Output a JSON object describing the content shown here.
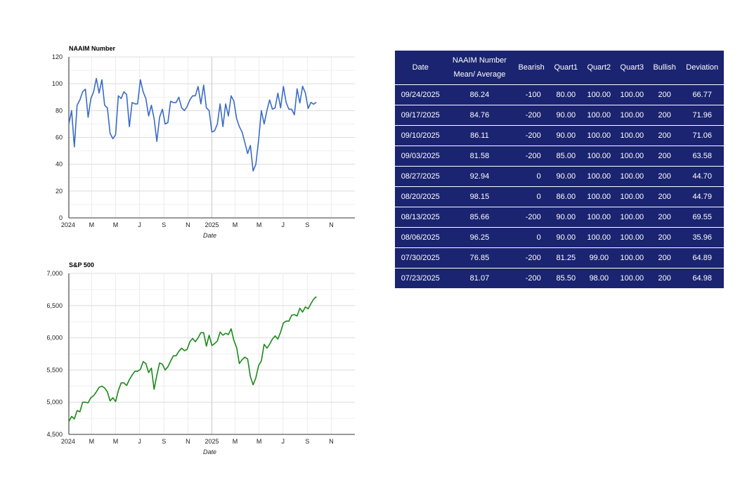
{
  "colors": {
    "naaim_line": "#3a6bc7",
    "sp_line": "#1a8a1a",
    "table_bg": "#1b2470",
    "table_text": "#ffffff",
    "grid": "#e2e2e2"
  },
  "chart_data": [
    {
      "type": "line",
      "title": "NAAIM Number",
      "xlabel": "Date",
      "ylabel": "",
      "ylim": [
        0,
        120
      ],
      "yticks": [
        0,
        20,
        40,
        60,
        80,
        100,
        120
      ],
      "ytick_labels": [
        "0",
        "20",
        "40",
        "60",
        "80",
        "100",
        "120"
      ],
      "xlim": [
        "2024-01-03",
        "2025-12-31"
      ],
      "xtick_labels": [
        "2024",
        "M",
        "M",
        "J",
        "S",
        "N",
        "2025",
        "M",
        "M",
        "J",
        "S",
        "N"
      ],
      "xtick_dates": [
        "2024-01-01",
        "2024-03-01",
        "2024-05-01",
        "2024-07-01",
        "2024-09-01",
        "2024-11-01",
        "2025-01-01",
        "2025-03-01",
        "2025-05-01",
        "2025-07-01",
        "2025-09-01",
        "2025-11-01"
      ],
      "grid": true,
      "series": [
        {
          "x": [
            "2024-01-03",
            "2024-01-10",
            "2024-01-17",
            "2024-01-24",
            "2024-01-31",
            "2024-02-07",
            "2024-02-14",
            "2024-02-21",
            "2024-02-28",
            "2024-03-06",
            "2024-03-13",
            "2024-03-20",
            "2024-03-27",
            "2024-04-03",
            "2024-04-10",
            "2024-04-17",
            "2024-04-24",
            "2024-05-01",
            "2024-05-08",
            "2024-05-15",
            "2024-05-22",
            "2024-05-29",
            "2024-06-05",
            "2024-06-12",
            "2024-06-19",
            "2024-06-26",
            "2024-07-03",
            "2024-07-10",
            "2024-07-17",
            "2024-07-24",
            "2024-07-31",
            "2024-08-07",
            "2024-08-14",
            "2024-08-21",
            "2024-08-28",
            "2024-09-04",
            "2024-09-11",
            "2024-09-18",
            "2024-09-25",
            "2024-10-02",
            "2024-10-09",
            "2024-10-16",
            "2024-10-23",
            "2024-10-30",
            "2024-11-06",
            "2024-11-13",
            "2024-11-20",
            "2024-11-27",
            "2024-12-04",
            "2024-12-11",
            "2024-12-18",
            "2024-12-25",
            "2025-01-01",
            "2025-01-08",
            "2025-01-15",
            "2025-01-22",
            "2025-01-29",
            "2025-02-05",
            "2025-02-12",
            "2025-02-19",
            "2025-02-26",
            "2025-03-05",
            "2025-03-12",
            "2025-03-19",
            "2025-03-26",
            "2025-04-02",
            "2025-04-09",
            "2025-04-16",
            "2025-04-23",
            "2025-04-30",
            "2025-05-07",
            "2025-05-14",
            "2025-05-21",
            "2025-05-28",
            "2025-06-04",
            "2025-06-11",
            "2025-06-18",
            "2025-06-25",
            "2025-07-02",
            "2025-07-09",
            "2025-07-16",
            "2025-07-23",
            "2025-07-30",
            "2025-08-06",
            "2025-08-13",
            "2025-08-20",
            "2025-08-27",
            "2025-09-03",
            "2025-09-10",
            "2025-09-17",
            "2025-09-24"
          ],
          "values": [
            70,
            80,
            53,
            84,
            88,
            94,
            96,
            75,
            89,
            94,
            104,
            93,
            103,
            84,
            82,
            63,
            59,
            62,
            91,
            89,
            94,
            92,
            68,
            86,
            85,
            85,
            103,
            94,
            89,
            76,
            84,
            74,
            57,
            75,
            81,
            70,
            71,
            87,
            86,
            86,
            90,
            82,
            80,
            83,
            88,
            91,
            91,
            98,
            85,
            99,
            82,
            80,
            64,
            65,
            70,
            85,
            68,
            85,
            76,
            91,
            87,
            74,
            68,
            64,
            56,
            48,
            54,
            35,
            40,
            58,
            80,
            70,
            80,
            88,
            81,
            82,
            93,
            82,
            98,
            86,
            81,
            81,
            76.85,
            96.25,
            85.66,
            98.15,
            92.94,
            81.58,
            86.11,
            84.76,
            86.24
          ]
        }
      ]
    },
    {
      "type": "line",
      "title": "S&P 500",
      "xlabel": "Date",
      "ylabel": "",
      "ylim": [
        4500,
        7000
      ],
      "yticks": [
        4500,
        5000,
        5500,
        6000,
        6500,
        7000
      ],
      "ytick_labels": [
        "4,500",
        "5,000",
        "5,500",
        "6,000",
        "6,500",
        "7,000"
      ],
      "xlim": [
        "2024-01-03",
        "2025-12-31"
      ],
      "xtick_labels": [
        "2024",
        "M",
        "M",
        "J",
        "S",
        "N",
        "2025",
        "M",
        "M",
        "J",
        "S",
        "N"
      ],
      "xtick_dates": [
        "2024-01-01",
        "2024-03-01",
        "2024-05-01",
        "2024-07-01",
        "2024-09-01",
        "2024-11-01",
        "2025-01-01",
        "2025-03-01",
        "2025-05-01",
        "2025-07-01",
        "2025-09-01",
        "2025-11-01"
      ],
      "grid": true,
      "series": [
        {
          "x": [
            "2024-01-03",
            "2024-01-10",
            "2024-01-17",
            "2024-01-24",
            "2024-01-31",
            "2024-02-07",
            "2024-02-14",
            "2024-02-21",
            "2024-02-28",
            "2024-03-06",
            "2024-03-13",
            "2024-03-20",
            "2024-03-27",
            "2024-04-03",
            "2024-04-10",
            "2024-04-17",
            "2024-04-24",
            "2024-05-01",
            "2024-05-08",
            "2024-05-15",
            "2024-05-22",
            "2024-05-29",
            "2024-06-05",
            "2024-06-12",
            "2024-06-19",
            "2024-06-26",
            "2024-07-03",
            "2024-07-10",
            "2024-07-17",
            "2024-07-24",
            "2024-07-31",
            "2024-08-07",
            "2024-08-14",
            "2024-08-21",
            "2024-08-28",
            "2024-09-04",
            "2024-09-11",
            "2024-09-18",
            "2024-09-25",
            "2024-10-02",
            "2024-10-09",
            "2024-10-16",
            "2024-10-23",
            "2024-10-30",
            "2024-11-06",
            "2024-11-13",
            "2024-11-20",
            "2024-11-27",
            "2024-12-04",
            "2024-12-11",
            "2024-12-18",
            "2024-12-25",
            "2025-01-01",
            "2025-01-08",
            "2025-01-15",
            "2025-01-22",
            "2025-01-29",
            "2025-02-05",
            "2025-02-12",
            "2025-02-19",
            "2025-02-26",
            "2025-03-05",
            "2025-03-12",
            "2025-03-19",
            "2025-03-26",
            "2025-04-02",
            "2025-04-09",
            "2025-04-16",
            "2025-04-23",
            "2025-04-30",
            "2025-05-07",
            "2025-05-14",
            "2025-05-21",
            "2025-05-28",
            "2025-06-04",
            "2025-06-11",
            "2025-06-18",
            "2025-06-25",
            "2025-07-02",
            "2025-07-09",
            "2025-07-16",
            "2025-07-23",
            "2025-07-30",
            "2025-08-06",
            "2025-08-13",
            "2025-08-20",
            "2025-08-27",
            "2025-09-03",
            "2025-09-10",
            "2025-09-17",
            "2025-09-24"
          ],
          "values": [
            4700,
            4780,
            4740,
            4870,
            4850,
            5000,
            5000,
            4990,
            5070,
            5100,
            5160,
            5230,
            5250,
            5220,
            5160,
            5020,
            5070,
            5010,
            5180,
            5300,
            5300,
            5260,
            5350,
            5420,
            5480,
            5480,
            5510,
            5630,
            5600,
            5460,
            5530,
            5200,
            5420,
            5610,
            5590,
            5500,
            5550,
            5640,
            5720,
            5720,
            5790,
            5840,
            5800,
            5820,
            5940,
            5990,
            5940,
            6000,
            6080,
            6080,
            5870,
            6040,
            5880,
            5910,
            5950,
            6090,
            6040,
            6070,
            6050,
            6140,
            5960,
            5850,
            5600,
            5660,
            5700,
            5670,
            5400,
            5270,
            5380,
            5570,
            5640,
            5900,
            5840,
            5900,
            5980,
            6030,
            5980,
            6090,
            6230,
            6260,
            6260,
            6350,
            6360,
            6340,
            6460,
            6400,
            6480,
            6450,
            6530,
            6600,
            6640
          ]
        }
      ]
    }
  ],
  "table": {
    "headers": [
      "Date",
      "NAAIM Number Mean/ Average",
      "Bearish",
      "Quart1",
      "Quart2",
      "Quart3",
      "Bullish",
      "Deviation"
    ],
    "rows": [
      [
        "09/24/2025",
        "86.24",
        "-100",
        "80.00",
        "100.00",
        "100.00",
        "200",
        "66.77"
      ],
      [
        "09/17/2025",
        "84.76",
        "-200",
        "90.00",
        "100.00",
        "100.00",
        "200",
        "71.96"
      ],
      [
        "09/10/2025",
        "86.11",
        "-200",
        "90.00",
        "100.00",
        "100.00",
        "200",
        "71.06"
      ],
      [
        "09/03/2025",
        "81.58",
        "-200",
        "85.00",
        "100.00",
        "100.00",
        "200",
        "63.58"
      ],
      [
        "08/27/2025",
        "92.94",
        "0",
        "90.00",
        "100.00",
        "100.00",
        "200",
        "44.70"
      ],
      [
        "08/20/2025",
        "98.15",
        "0",
        "86.00",
        "100.00",
        "100.00",
        "200",
        "44.79"
      ],
      [
        "08/13/2025",
        "85.66",
        "-200",
        "90.00",
        "100.00",
        "100.00",
        "200",
        "69.55"
      ],
      [
        "08/06/2025",
        "96.25",
        "0",
        "90.00",
        "100.00",
        "100.00",
        "200",
        "35.96"
      ],
      [
        "07/30/2025",
        "76.85",
        "-200",
        "81.25",
        "99.00",
        "100.00",
        "200",
        "64.89"
      ],
      [
        "07/23/2025",
        "81.07",
        "-200",
        "85.50",
        "98.00",
        "100.00",
        "200",
        "64.98"
      ]
    ]
  }
}
